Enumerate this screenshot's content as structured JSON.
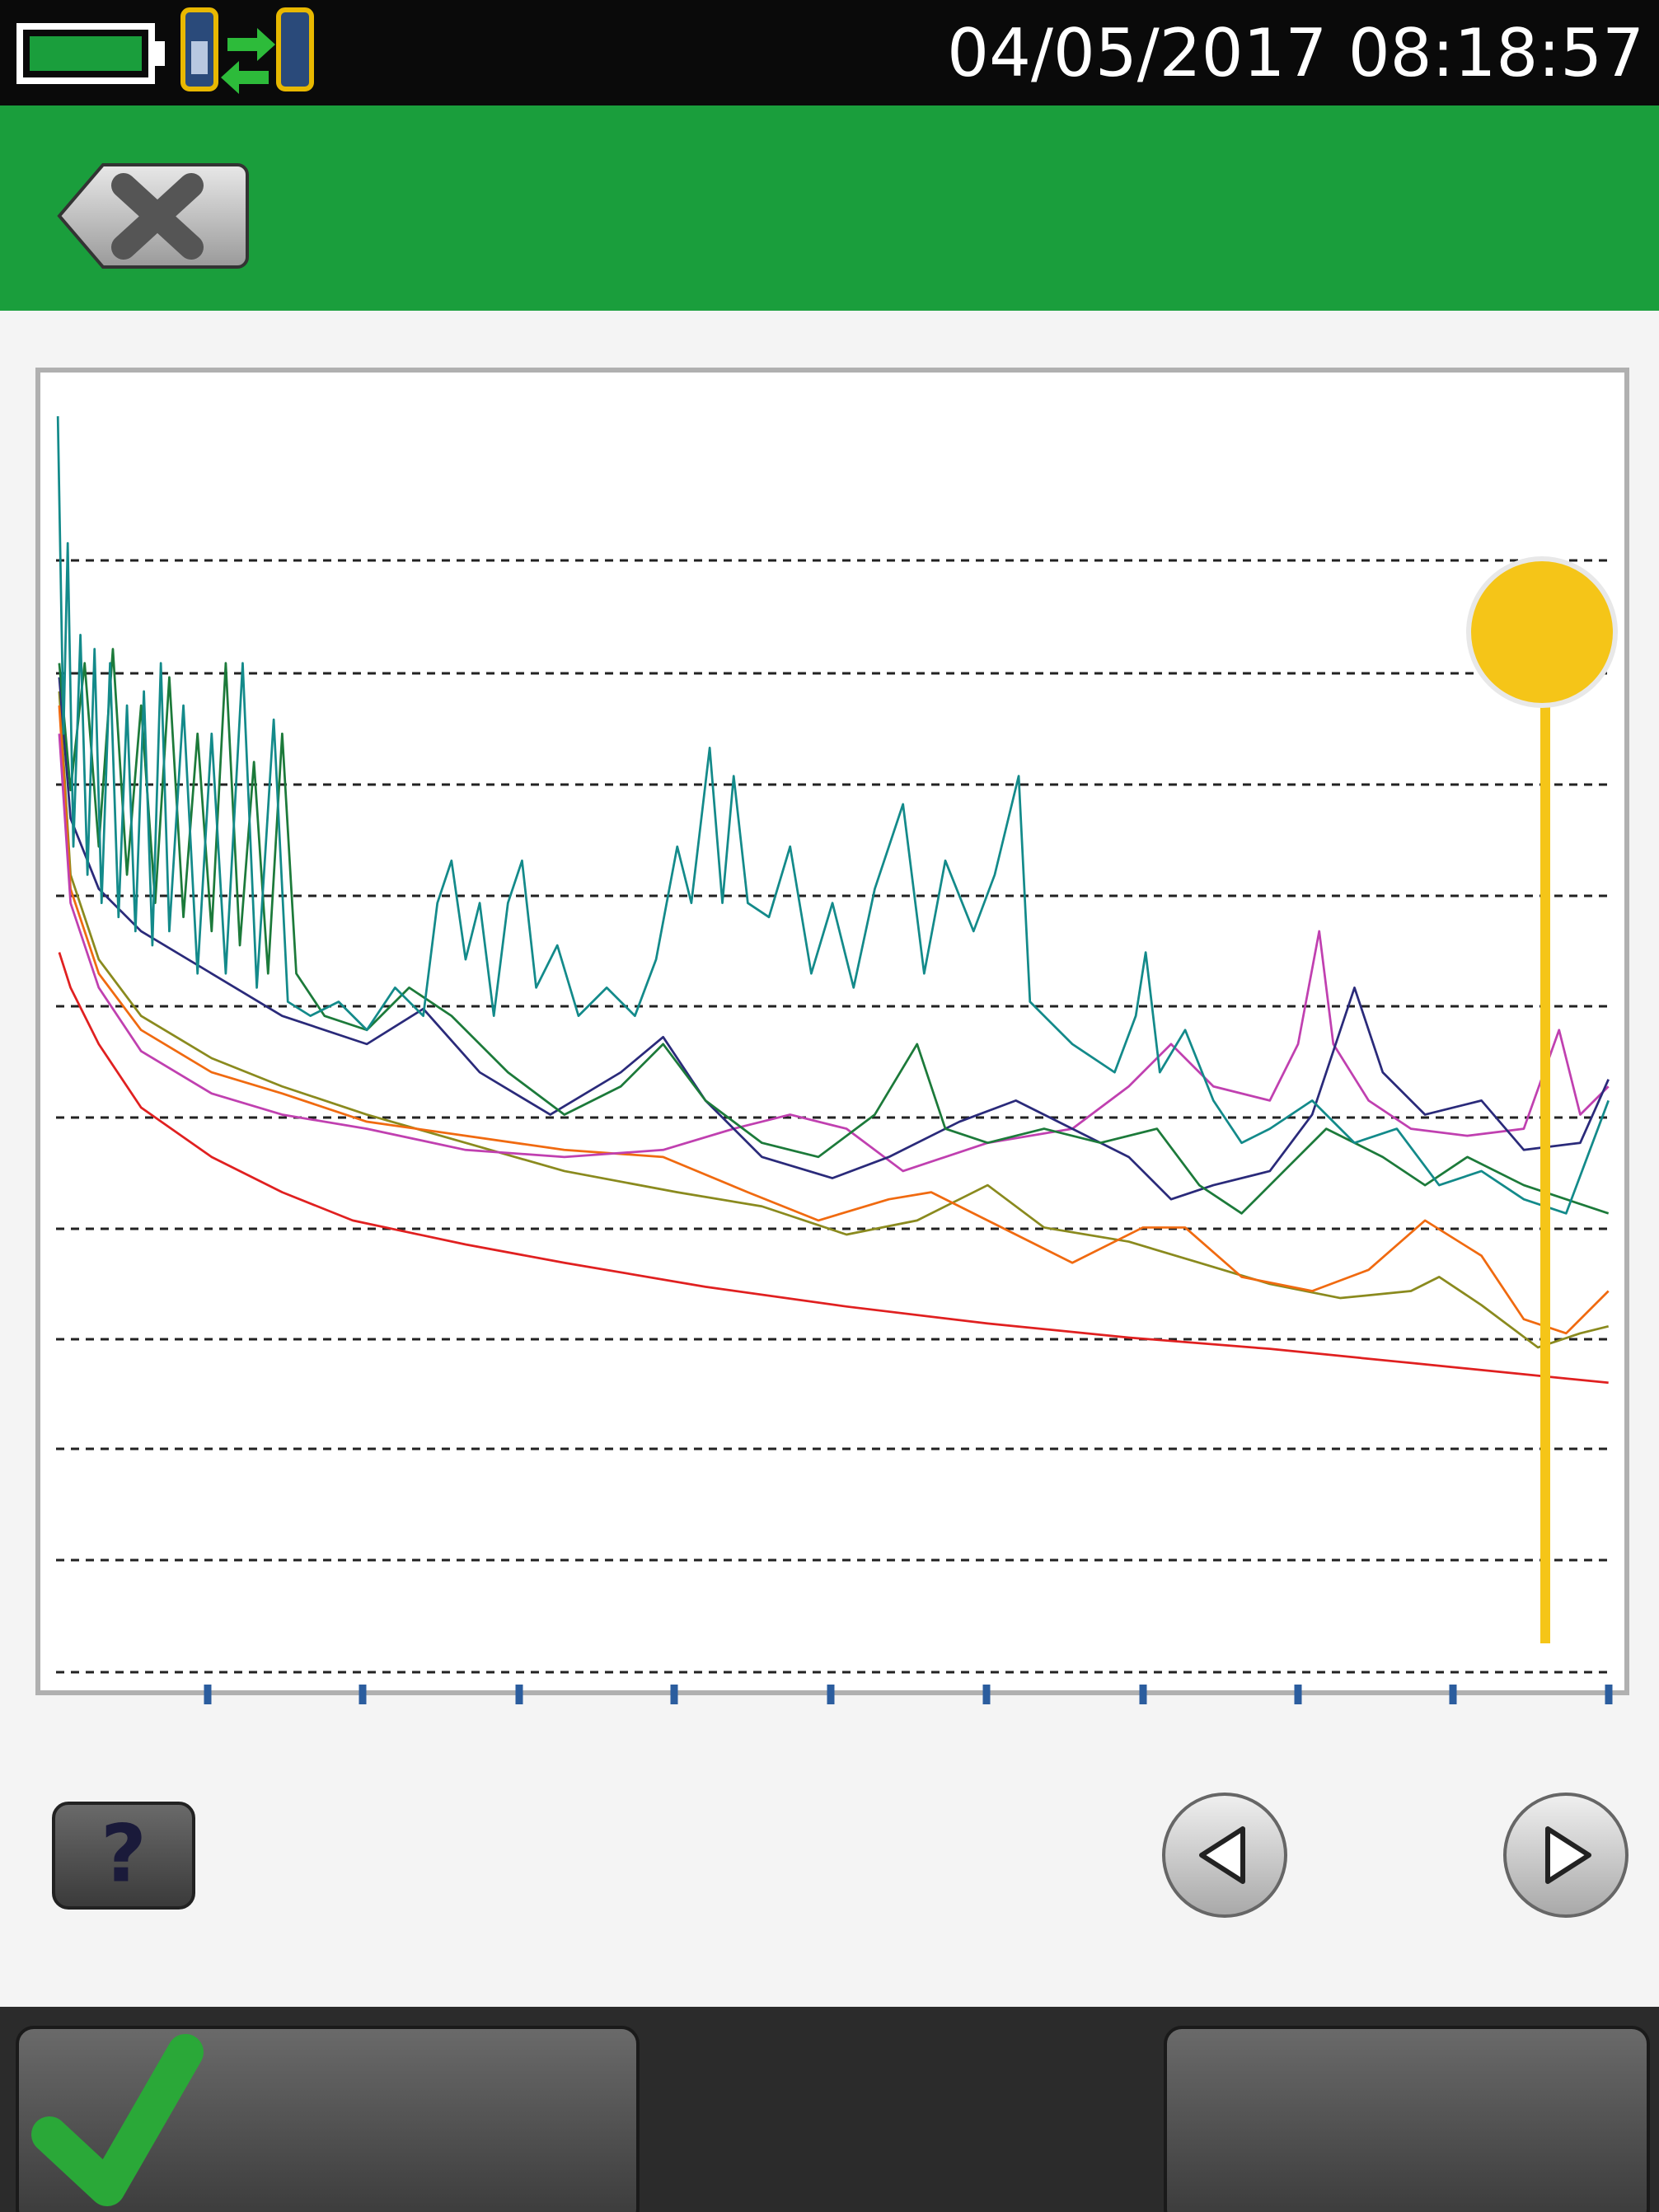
{
  "status_bar": {
    "datetime": "04/05/2017 08:18:57"
  },
  "help_button": {
    "label": "?"
  }
}
